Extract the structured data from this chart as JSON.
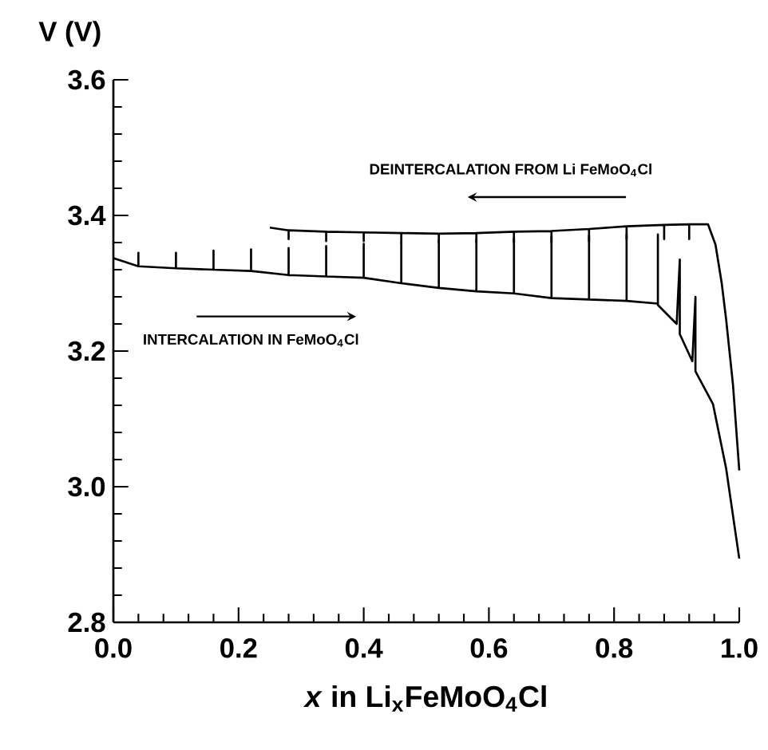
{
  "chart_data": {
    "type": "line",
    "xlabel": "*x* in Li$_{x}$FeMoO$_{4}$Cl",
    "ylabel": "V (V)",
    "xlim": [
      0,
      1.0
    ],
    "ylim": [
      2.8,
      3.6
    ],
    "xticks": [
      {
        "value": 0,
        "label": "0.0"
      },
      0.2,
      0.4,
      0.6,
      0.8,
      {
        "value": 1.0,
        "label": "1.0"
      }
    ],
    "yticks": [
      2.8,
      {
        "value": 3.0,
        "label": "3.0"
      },
      3.2,
      3.4,
      3.6
    ],
    "marker": "none",
    "line_style": "solid",
    "annotations": [
      "DEINTERCALATION FROM Li FeMoO$_{4}$Cl",
      "INTERCALATION IN FeMoO$_{4}$Cl"
    ],
    "series": [
      {
        "color": "#000000",
        "x": [
          0.0,
          0.04,
          0.04,
          0.04,
          0.1,
          0.1,
          0.1,
          0.16,
          0.16,
          0.16,
          0.22,
          0.22,
          0.22,
          0.28,
          0.28,
          0.28,
          0.34,
          0.34,
          0.34,
          0.4,
          0.4,
          0.4,
          0.46,
          0.46,
          0.46,
          0.52,
          0.52,
          0.52,
          0.58,
          0.58,
          0.58,
          0.64,
          0.64,
          0.64,
          0.7,
          0.7,
          0.7,
          0.76,
          0.76,
          0.76,
          0.82,
          0.82,
          0.82,
          0.87,
          0.87,
          0.87,
          0.9,
          0.905,
          0.905,
          0.925,
          0.93,
          0.93,
          0.958,
          0.979,
          1.0
        ],
        "values": [
          3.337,
          3.325,
          3.345,
          3.325,
          3.322,
          3.345,
          3.322,
          3.32,
          3.348,
          3.32,
          3.318,
          3.35,
          3.318,
          3.312,
          3.352,
          3.312,
          3.31,
          3.355,
          3.31,
          3.308,
          3.358,
          3.308,
          3.3,
          3.36,
          3.3,
          3.293,
          3.362,
          3.293,
          3.288,
          3.365,
          3.288,
          3.285,
          3.366,
          3.285,
          3.278,
          3.368,
          3.278,
          3.276,
          3.37,
          3.276,
          3.274,
          3.372,
          3.274,
          3.27,
          3.372,
          3.268,
          3.24,
          3.335,
          3.225,
          3.185,
          3.28,
          3.17,
          3.122,
          3.027,
          2.894
        ]
      },
      {
        "color": "#000000",
        "x": [
          0.25,
          0.28,
          0.28,
          0.28,
          0.34,
          0.34,
          0.34,
          0.4,
          0.4,
          0.4,
          0.46,
          0.46,
          0.46,
          0.52,
          0.52,
          0.52,
          0.58,
          0.58,
          0.58,
          0.64,
          0.64,
          0.64,
          0.7,
          0.7,
          0.7,
          0.76,
          0.76,
          0.76,
          0.82,
          0.82,
          0.82,
          0.88,
          0.88,
          0.88,
          0.92,
          0.92,
          0.92,
          0.95,
          0.962,
          0.972,
          0.979,
          0.99,
          1.0
        ],
        "values": [
          3.382,
          3.378,
          3.365,
          3.378,
          3.376,
          3.362,
          3.376,
          3.375,
          3.362,
          3.375,
          3.374,
          3.36,
          3.374,
          3.373,
          3.36,
          3.373,
          3.374,
          3.36,
          3.374,
          3.376,
          3.36,
          3.376,
          3.377,
          3.36,
          3.377,
          3.38,
          3.362,
          3.38,
          3.384,
          3.365,
          3.384,
          3.386,
          3.365,
          3.386,
          3.387,
          3.365,
          3.387,
          3.387,
          3.357,
          3.3,
          3.247,
          3.15,
          3.024
        ]
      }
    ]
  }
}
